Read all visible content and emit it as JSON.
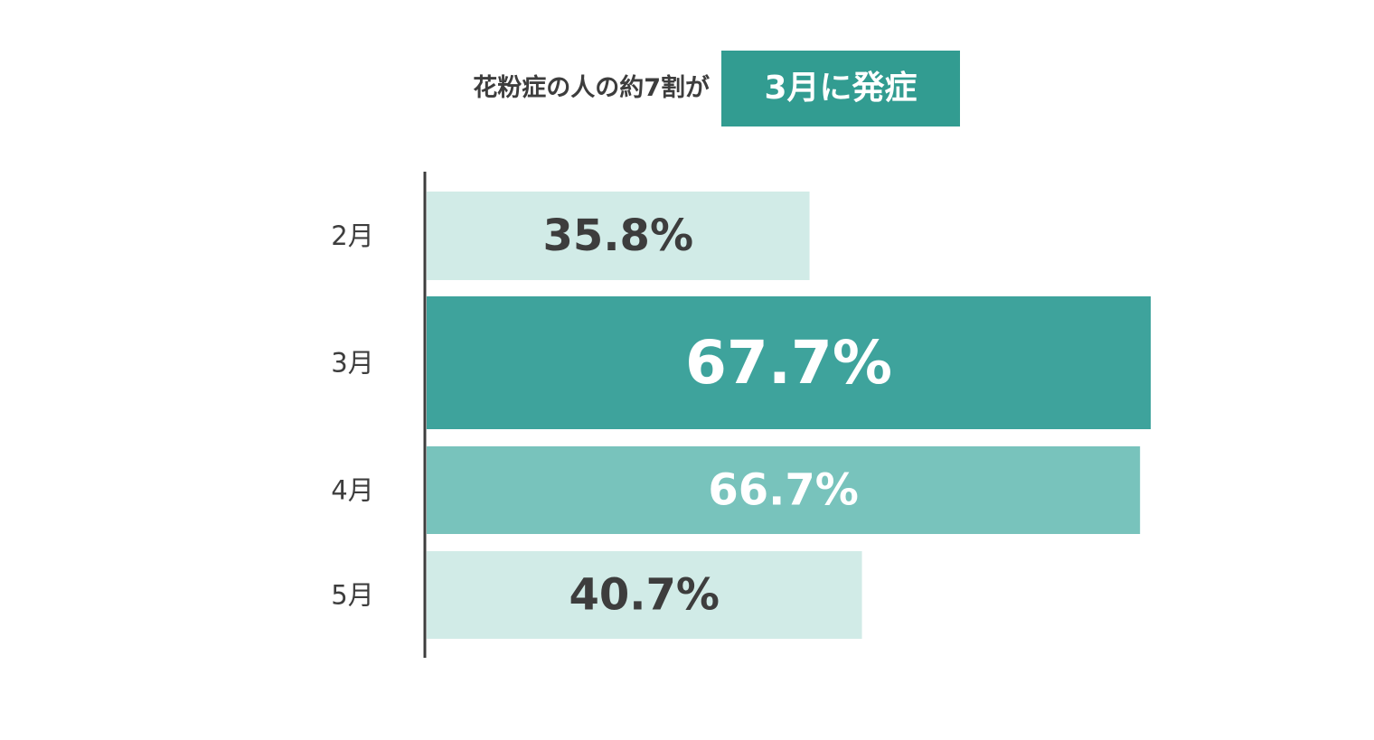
{
  "headline": {
    "text": "花粉症の人の約7割が",
    "badge": "3月に発症",
    "badge_color": "#329c91"
  },
  "chart_data": {
    "type": "bar",
    "orientation": "horizontal",
    "title": "花粉症の人の約7割が 3月に発症",
    "xlabel": "",
    "ylabel": "",
    "xlim": [
      0,
      67.7
    ],
    "grid": false,
    "legend": "none",
    "categories": [
      "2月",
      "3月",
      "4月",
      "5月"
    ],
    "values": [
      35.8,
      67.7,
      66.7,
      40.7
    ],
    "data_labels": [
      "35.8%",
      "67.7%",
      "66.7%",
      "40.7%"
    ],
    "bar_colors": [
      "#d1ebe7",
      "#3ea39c",
      "#78c3bc",
      "#d1ebe7"
    ],
    "label_colors": [
      "#3d3d3d",
      "#ffffff",
      "#ffffff",
      "#3d3d3d"
    ],
    "emphasized_category": "3月",
    "colors": {
      "axis": "#3d3d3d",
      "category_text": "#3d3d3d"
    }
  }
}
